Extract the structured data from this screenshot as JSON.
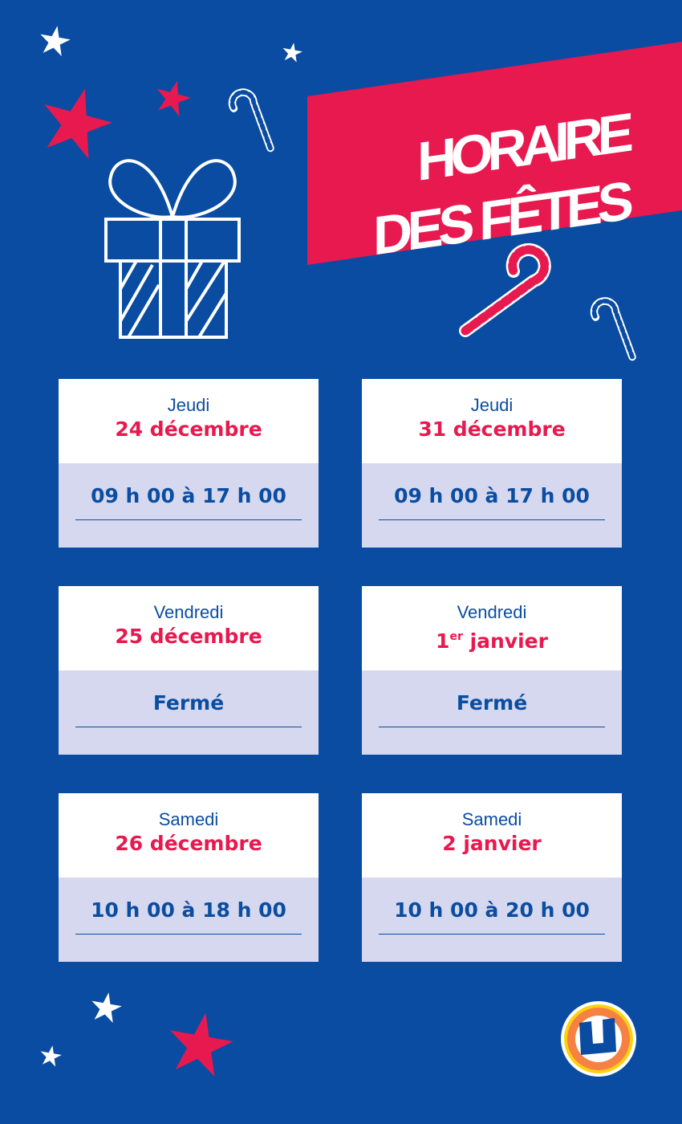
{
  "title": {
    "line1": "HORAIRE",
    "line2": "DES FÊTES"
  },
  "colors": {
    "background": "#0a4ca1",
    "accent": "#e8194f",
    "panel": "#d5d8ee",
    "text": "#0b4da1"
  },
  "cards": [
    {
      "day": "Jeudi",
      "date": "24 décembre",
      "date_sup": "",
      "date_rest": "",
      "hours": "09 h 00 à 17 h 00"
    },
    {
      "day": "Jeudi",
      "date": "31 décembre",
      "date_sup": "",
      "date_rest": "",
      "hours": "09 h 00 à 17 h 00"
    },
    {
      "day": "Vendredi",
      "date": "25 décembre",
      "date_sup": "",
      "date_rest": "",
      "hours": "Fermé"
    },
    {
      "day": "Vendredi",
      "date": "1",
      "date_sup": "er",
      "date_rest": " janvier",
      "hours": "Fermé"
    },
    {
      "day": "Samedi",
      "date": "26 décembre",
      "date_sup": "",
      "date_rest": "",
      "hours": "10 h 00 à 18 h 00"
    },
    {
      "day": "Samedi",
      "date": "2 janvier",
      "date_sup": "",
      "date_rest": "",
      "hours": "10 h 00 à 20 h 00"
    }
  ],
  "logo": {
    "letter": "U"
  },
  "icons": [
    "star-icon",
    "candy-cane-icon",
    "gift-icon",
    "logo"
  ]
}
